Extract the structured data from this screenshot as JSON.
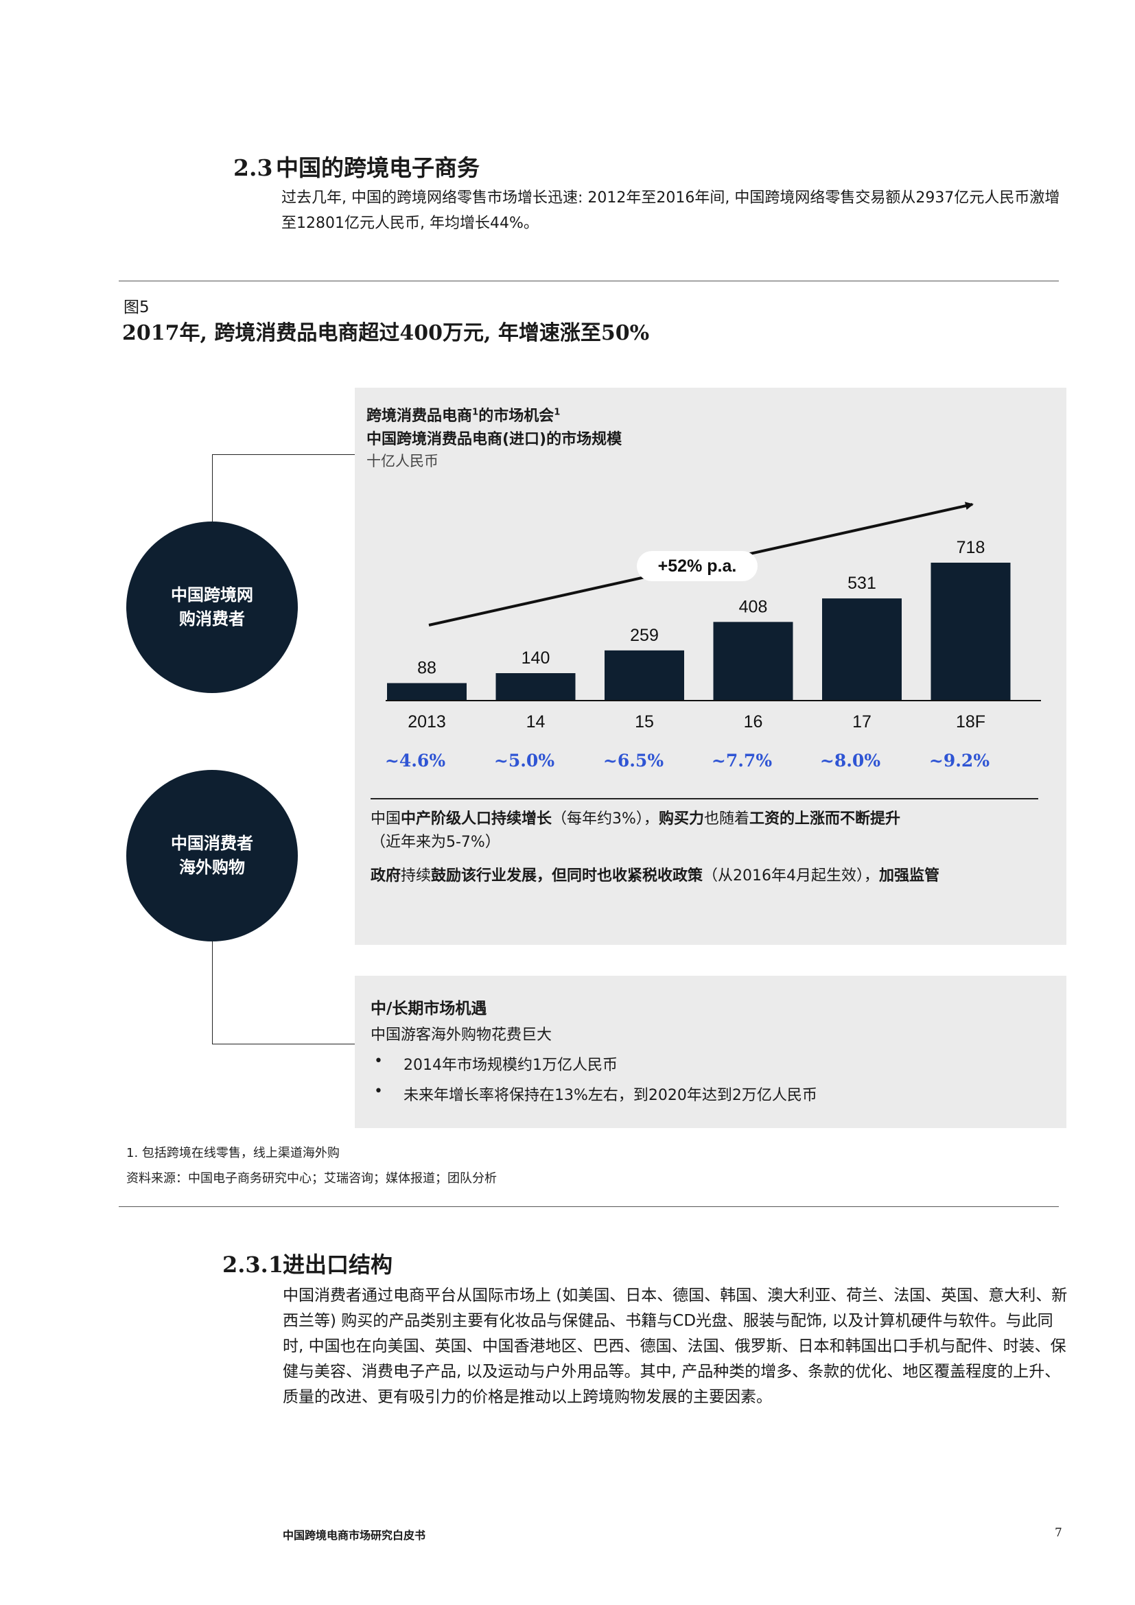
{
  "section": {
    "number": "2.3",
    "title": "中国的跨境电子商务",
    "intro": "过去几年, 中国的跨境网络零售市场增长迅速: 2012年至2016年间, 中国跨境网络零售交易额从2937亿元人民币激增至12801亿元人民币, 年均增长44%。"
  },
  "figure": {
    "label": "图5",
    "title": "2017年, 跨境消费品电商超过400万元, 年增速涨至50%"
  },
  "circles": {
    "top": {
      "line1": "中国跨境网",
      "line2": "购消费者"
    },
    "bottom": {
      "line1": "中国消费者",
      "line2": "海外购物"
    }
  },
  "panel_top": {
    "heading1": "跨境消费品电商",
    "heading1_sup": "1",
    "heading1_rest": "的市场机会",
    "heading1_sup2": "1",
    "heading2": "中国跨境消费品电商(进口)的市场规模",
    "unit": "十亿人民币",
    "growth_label": "+52% p.a.",
    "penetration": [
      "~4.6%",
      "~5.0%",
      "~6.5%",
      "~7.7%",
      "~8.0%",
      "~9.2%"
    ],
    "text1_a": "中国",
    "text1_b": "中产阶级人口持续增长",
    "text1_c": "（每年约3%），",
    "text1_d": "购买力",
    "text1_e": "也随着",
    "text1_f": "工资的上涨而不断提升",
    "text1_g": "（近年来为5-7%）",
    "text2_a": "政府",
    "text2_b": "持续",
    "text2_c": "鼓励该行业发展，但同时也收紧税收政策",
    "text2_d": "（从2016年4月起生效），",
    "text2_e": "加强监管"
  },
  "panel_bottom": {
    "title": "中/长期市场机遇",
    "subtitle": "中国游客海外购物花费巨大",
    "bullets": [
      "2014年市场规模约1万亿人民币",
      "未来年增长率将保持在13%左右，到2020年达到2万亿人民币"
    ],
    "bullet_char": "•"
  },
  "notes": {
    "footnote": "1. 包括跨境在线零售，线上渠道海外购",
    "source": "资料来源：中国电子商务研究中心；艾瑞咨询；媒体报道；团队分析"
  },
  "subsection": {
    "number": "2.3.1",
    "title": "进出口结构",
    "body": "中国消费者通过电商平台从国际市场上 (如美国、日本、德国、韩国、澳大利亚、荷兰、法国、英国、意大利、新西兰等) 购买的产品类别主要有化妆品与保健品、书籍与CD光盘、服装与配饰, 以及计算机硬件与软件。与此同时, 中国也在向美国、英国、中国香港地区、巴西、德国、法国、俄罗斯、日本和韩国出口手机与配件、时装、保健与美容、消费电子产品, 以及运动与户外用品等。其中, 产品种类的增多、条款的优化、地区覆盖程度的上升、质量的改进、更有吸引力的价格是推动以上跨境购物发展的主要因素。"
  },
  "footer": {
    "title": "中国跨境电商市场研究白皮书",
    "page": "7"
  },
  "colors": {
    "navy": "#0e1f30",
    "bar": "#0e1f30",
    "panel_bg": "#ebebeb",
    "penetration_blue": "#2f55d4"
  },
  "chart_data": {
    "type": "bar",
    "categories": [
      "2013",
      "14",
      "15",
      "16",
      "17",
      "18F"
    ],
    "values": [
      88,
      140,
      259,
      408,
      531,
      718
    ],
    "ylim": [
      0,
      718
    ]
  }
}
